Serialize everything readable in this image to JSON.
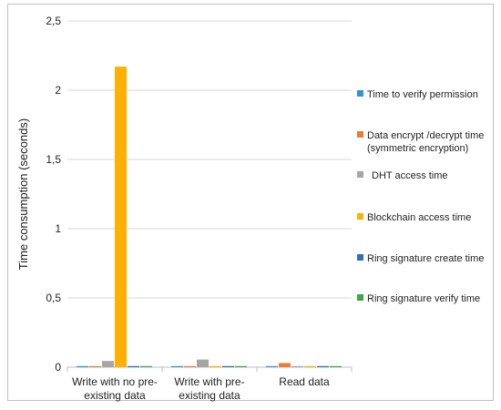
{
  "chart_data": {
    "type": "bar",
    "title": "",
    "xlabel": "",
    "ylabel": "Time consumption (seconds)",
    "ylim": [
      0,
      2.5
    ],
    "yticks": [
      "0",
      "0,5",
      "1",
      "1,5",
      "2",
      "2,5"
    ],
    "ytick_values": [
      0,
      0.5,
      1,
      1.5,
      2,
      2.5
    ],
    "grid": true,
    "legend_position": "right",
    "categories": [
      [
        "Write with no pre-",
        "existing data"
      ],
      [
        "Write with pre-",
        "existing data"
      ],
      [
        "Read data"
      ]
    ],
    "series": [
      {
        "name": "Time to verify permission",
        "color": "#2e97d3",
        "values": [
          0.005,
          0.005,
          0.005
        ]
      },
      {
        "name": [
          "Data encrypt /decrypt time",
          "(symmetric encryption)"
        ],
        "color": "#ed7d31",
        "values": [
          0.005,
          0.005,
          0.03
        ]
      },
      {
        "name": [
          "DHT access time"
        ],
        "color": "#a5a5a5",
        "values": [
          0.045,
          0.055,
          0.005
        ]
      },
      {
        "name": "Blockchain access time",
        "color": "#ffb000",
        "values": [
          2.17,
          0.005,
          0.005
        ]
      },
      {
        "name": "Ring signature create time",
        "color": "#2e6fb7",
        "values": [
          0.005,
          0.005,
          0.005
        ]
      },
      {
        "name": "Ring signature verify time",
        "color": "#3aa848",
        "values": [
          0.005,
          0.005,
          0.005
        ]
      }
    ]
  }
}
